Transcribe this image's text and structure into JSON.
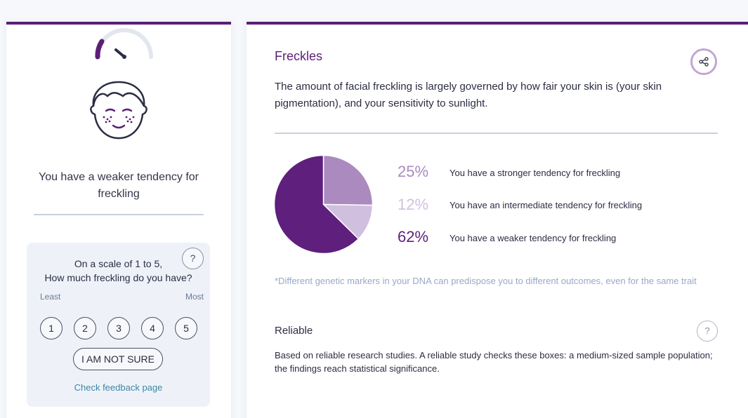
{
  "result": {
    "summary": "You have a weaker tendency for freckling"
  },
  "survey": {
    "question_line1": "On a scale of 1 to 5,",
    "question_line2": "How much freckling do you have?",
    "help_label": "?",
    "least_label": "Least",
    "most_label": "Most",
    "scale_options": [
      "1",
      "2",
      "3",
      "4",
      "5"
    ],
    "not_sure_label": "I AM NOT SURE",
    "feedback_link": "Check feedback page"
  },
  "trait": {
    "title": "Freckles",
    "description": "The amount of facial freckling is largely governed by how fair your skin is (your skin pigmentation), and your sensitivity to sunlight.",
    "share_icon": "share-icon"
  },
  "distribution": [
    {
      "percent": 25,
      "percent_label": "25%",
      "label": "You have a stronger tendency for freckling",
      "color": "#ab8ac0"
    },
    {
      "percent": 12,
      "percent_label": "12%",
      "label": "You have an intermediate tendency for freckling",
      "color": "#d1bfdf"
    },
    {
      "percent": 62,
      "percent_label": "62%",
      "label": "You have a weaker tendency for freckling",
      "color": "#5e1f7d"
    }
  ],
  "footnote": "*Different genetic markers in your DNA can predispose you to different outcomes, even for the same trait",
  "reliability": {
    "title": "Reliable",
    "help_label": "?",
    "description": "Based on reliable research studies. A reliable study checks these boxes: a medium-sized sample population; the findings reach statistical significance."
  },
  "colors": {
    "accent": "#5b1f78",
    "link": "#3d86a8"
  }
}
